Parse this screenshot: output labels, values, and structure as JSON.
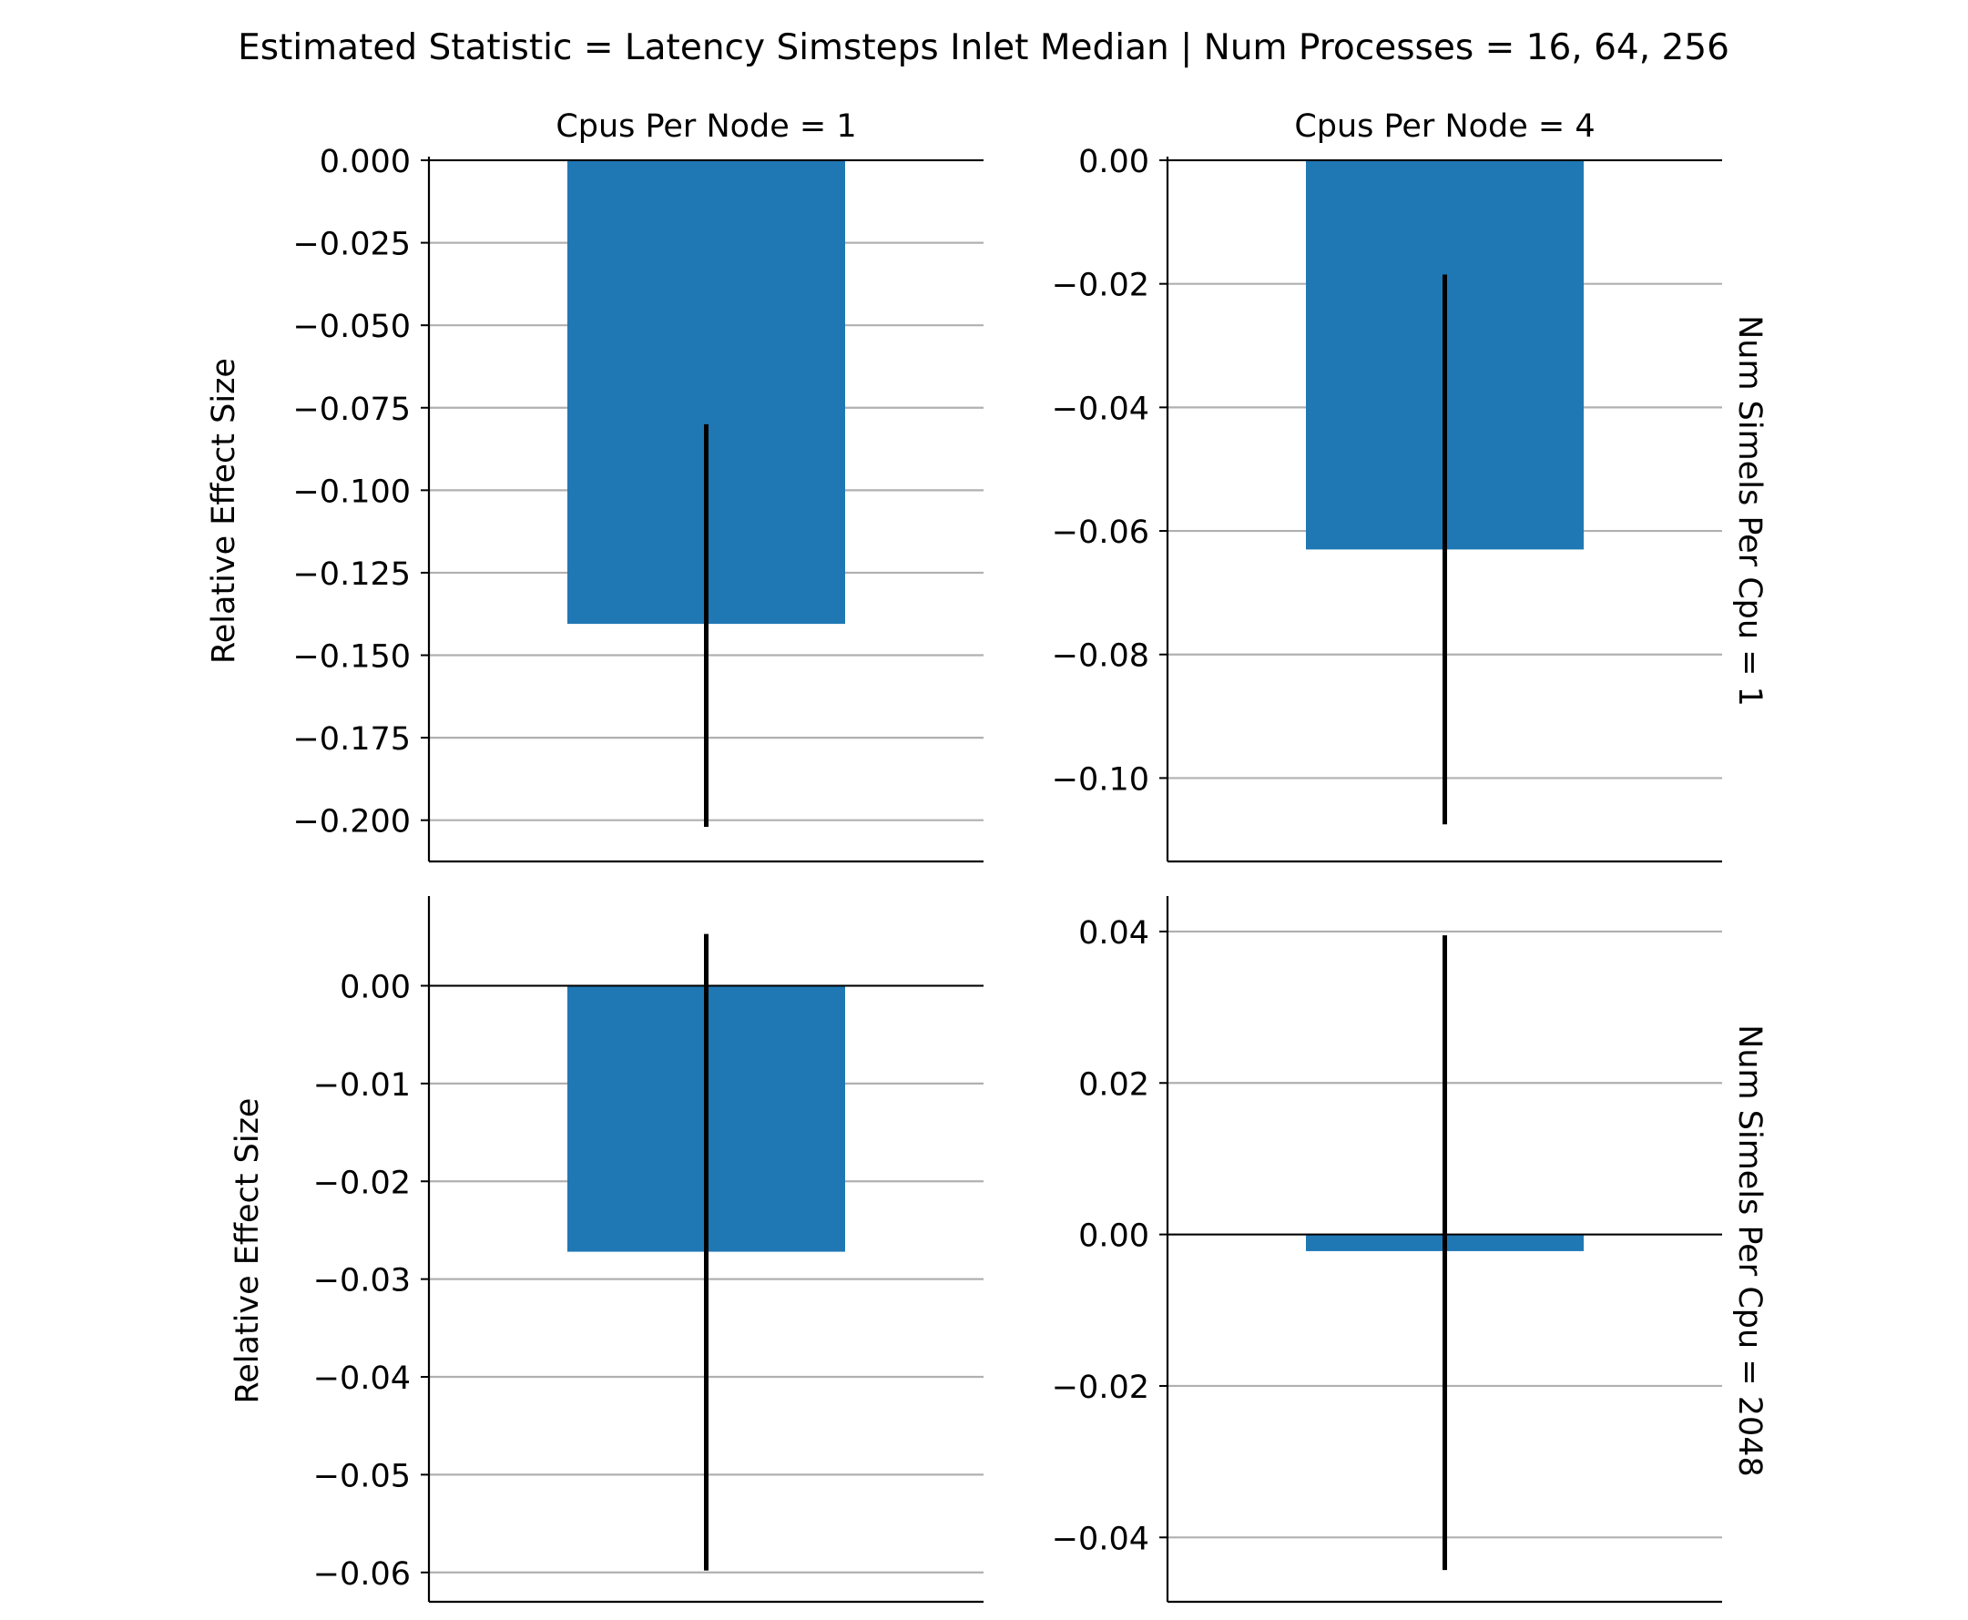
{
  "figure": {
    "suptitle": "Estimated Statistic = Latency Simsteps Inlet Median | Num Processes = 16, 64, 256",
    "col_titles": [
      "Cpus Per Node = 1",
      "Cpus Per Node = 4"
    ],
    "row_titles": [
      "Num Simels Per Cpu = 1",
      "Num Simels Per Cpu = 2048"
    ],
    "ylabel": "Relative Effect Size",
    "colors": {
      "bar": "#1f77b4",
      "errorbar": "#000000",
      "grid": "#b0b0b0",
      "axis": "#000000"
    }
  },
  "chart_data": [
    {
      "type": "bar",
      "title": "Cpus Per Node = 1",
      "row_label": "",
      "ylabel": "Relative Effect Size",
      "categories": [
        ""
      ],
      "values": [
        -0.1405
      ],
      "error_low": [
        -0.202
      ],
      "error_high": [
        -0.08
      ],
      "ylim": [
        -0.2125,
        0.0
      ],
      "yticks": [
        0.0,
        -0.025,
        -0.05,
        -0.075,
        -0.1,
        -0.125,
        -0.15,
        -0.175,
        -0.2
      ],
      "ytick_labels": [
        "0.000",
        "−0.025",
        "−0.050",
        "−0.075",
        "−0.100",
        "−0.125",
        "−0.150",
        "−0.175",
        "−0.200"
      ],
      "grid": "y"
    },
    {
      "type": "bar",
      "title": "Cpus Per Node = 4",
      "row_label": "Num Simels Per Cpu = 1",
      "ylabel": "",
      "categories": [
        ""
      ],
      "values": [
        -0.063
      ],
      "error_low": [
        -0.1075
      ],
      "error_high": [
        -0.0185
      ],
      "ylim": [
        -0.1135,
        0.0
      ],
      "yticks": [
        0.0,
        -0.02,
        -0.04,
        -0.06,
        -0.08,
        -0.1
      ],
      "ytick_labels": [
        "0.00",
        "−0.02",
        "−0.04",
        "−0.06",
        "−0.08",
        "−0.10"
      ],
      "grid": "y"
    },
    {
      "type": "bar",
      "title": "",
      "row_label": "",
      "ylabel": "Relative Effect Size",
      "categories": [
        ""
      ],
      "values": [
        -0.0272
      ],
      "error_low": [
        -0.0598
      ],
      "error_high": [
        0.0053
      ],
      "ylim": [
        -0.063,
        0.0088
      ],
      "yticks": [
        0.0,
        -0.01,
        -0.02,
        -0.03,
        -0.04,
        -0.05,
        -0.06
      ],
      "ytick_labels": [
        "0.00",
        "−0.01",
        "−0.02",
        "−0.03",
        "−0.04",
        "−0.05",
        "−0.06"
      ],
      "grid": "y"
    },
    {
      "type": "bar",
      "title": "",
      "row_label": "Num Simels Per Cpu = 2048",
      "ylabel": "",
      "categories": [
        ""
      ],
      "values": [
        -0.0022
      ],
      "error_low": [
        -0.0443
      ],
      "error_high": [
        0.0395
      ],
      "ylim": [
        -0.0485,
        0.0442
      ],
      "yticks": [
        0.04,
        0.02,
        0.0,
        -0.02,
        -0.04
      ],
      "ytick_labels": [
        "0.04",
        "0.02",
        "0.00",
        "−0.02",
        "−0.04"
      ],
      "grid": "y"
    }
  ]
}
